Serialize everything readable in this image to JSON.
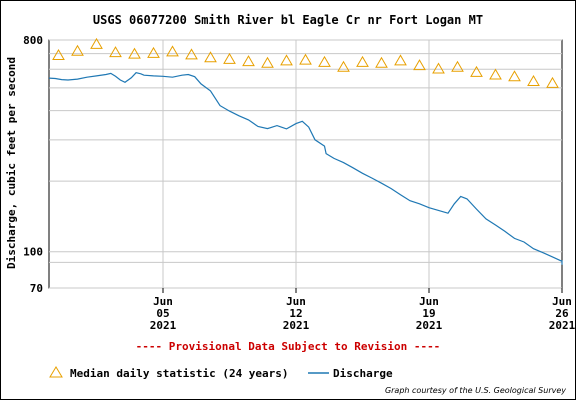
{
  "chart_data": {
    "type": "line",
    "title": "USGS 06077200 Smith River bl Eagle Cr nr Fort Logan MT",
    "ylabel": "Discharge, cubic feet per second",
    "y_scale": "log",
    "ylim": [
      70,
      800
    ],
    "y_ticks": [
      {
        "value": 800,
        "label": "800"
      },
      {
        "value": 100,
        "label": "100"
      },
      {
        "value": 70,
        "label": "70"
      }
    ],
    "y_minor_grid": [
      90,
      200,
      300,
      400,
      500,
      600,
      700
    ],
    "xlim": [
      "2021-05-30",
      "2021-06-26"
    ],
    "x_ticks": [
      {
        "date": "2021-06-05",
        "line1": "Jun",
        "line2": "05",
        "line3": "2021"
      },
      {
        "date": "2021-06-12",
        "line1": "Jun",
        "line2": "12",
        "line3": "2021"
      },
      {
        "date": "2021-06-19",
        "line1": "Jun",
        "line2": "19",
        "line3": "2021"
      },
      {
        "date": "2021-06-26",
        "line1": "Jun",
        "line2": "26",
        "line3": "2021"
      }
    ],
    "grid": true,
    "legend_position": "bottom",
    "colors": {
      "median": "#e8a000",
      "discharge": "#1f78b4",
      "provisional": "#cc0000"
    },
    "series": [
      {
        "name": "Median daily statistic (24 years)",
        "style": "triangle-markers",
        "x": [
          "2021-05-30",
          "2021-05-31",
          "2021-06-01",
          "2021-06-02",
          "2021-06-03",
          "2021-06-04",
          "2021-06-05",
          "2021-06-06",
          "2021-06-07",
          "2021-06-08",
          "2021-06-09",
          "2021-06-10",
          "2021-06-11",
          "2021-06-12",
          "2021-06-13",
          "2021-06-14",
          "2021-06-15",
          "2021-06-16",
          "2021-06-17",
          "2021-06-18",
          "2021-06-19",
          "2021-06-20",
          "2021-06-21",
          "2021-06-22",
          "2021-06-23",
          "2021-06-24",
          "2021-06-25"
        ],
        "values": [
          690,
          720,
          770,
          710,
          700,
          705,
          715,
          695,
          675,
          665,
          650,
          640,
          655,
          660,
          645,
          615,
          645,
          640,
          655,
          625,
          605,
          615,
          585,
          570,
          560,
          535,
          525
        ]
      },
      {
        "name": "Discharge",
        "style": "line",
        "x": [
          "2021-05-30",
          "2021-05-31",
          "2021-06-01",
          "2021-06-02",
          "2021-06-03",
          "2021-06-04",
          "2021-06-05",
          "2021-06-06",
          "2021-06-07",
          "2021-06-08",
          "2021-06-09",
          "2021-06-10",
          "2021-06-11",
          "2021-06-12",
          "2021-06-13",
          "2021-06-14",
          "2021-06-15",
          "2021-06-16",
          "2021-06-17",
          "2021-06-18",
          "2021-06-19",
          "2021-06-20",
          "2021-06-21",
          "2021-06-22",
          "2021-06-23",
          "2021-06-24",
          "2021-06-25",
          "2021-06-26"
        ],
        "values": [
          550,
          540,
          555,
          570,
          525,
          570,
          560,
          565,
          470,
          400,
          370,
          340,
          355,
          345,
          270,
          245,
          225,
          205,
          185,
          165,
          155,
          145,
          150,
          135,
          122,
          110,
          99,
          91
        ],
        "fine": [
          [
            "2021-05-30T00:00",
            550
          ],
          [
            "2021-05-30T08:00",
            548
          ],
          [
            "2021-05-30T16:00",
            542
          ],
          [
            "2021-05-31T00:00",
            540
          ],
          [
            "2021-05-31T12:00",
            545
          ],
          [
            "2021-06-01T00:00",
            555
          ],
          [
            "2021-06-01T12:00",
            562
          ],
          [
            "2021-06-02T00:00",
            570
          ],
          [
            "2021-06-02T06:00",
            576
          ],
          [
            "2021-06-02T12:00",
            560
          ],
          [
            "2021-06-02T18:00",
            540
          ],
          [
            "2021-06-03T00:00",
            528
          ],
          [
            "2021-06-03T08:00",
            552
          ],
          [
            "2021-06-03T14:00",
            580
          ],
          [
            "2021-06-03T20:00",
            574
          ],
          [
            "2021-06-04T00:00",
            566
          ],
          [
            "2021-06-04T12:00",
            562
          ],
          [
            "2021-06-05T00:00",
            560
          ],
          [
            "2021-06-05T12:00",
            555
          ],
          [
            "2021-06-06T00:00",
            566
          ],
          [
            "2021-06-06T08:00",
            570
          ],
          [
            "2021-06-06T16:00",
            558
          ],
          [
            "2021-06-07T00:00",
            520
          ],
          [
            "2021-06-07T12:00",
            485
          ],
          [
            "2021-06-08T00:00",
            420
          ],
          [
            "2021-06-08T12:00",
            398
          ],
          [
            "2021-06-09T00:00",
            380
          ],
          [
            "2021-06-09T12:00",
            365
          ],
          [
            "2021-06-10T00:00",
            342
          ],
          [
            "2021-06-10T12:00",
            335
          ],
          [
            "2021-06-11T00:00",
            345
          ],
          [
            "2021-06-11T12:00",
            334
          ],
          [
            "2021-06-12T00:00",
            352
          ],
          [
            "2021-06-12T08:00",
            360
          ],
          [
            "2021-06-12T16:00",
            340
          ],
          [
            "2021-06-13T00:00",
            300
          ],
          [
            "2021-06-13T12:00",
            282
          ],
          [
            "2021-06-13T14:00",
            262
          ],
          [
            "2021-06-14T00:00",
            250
          ],
          [
            "2021-06-14T12:00",
            240
          ],
          [
            "2021-06-15T00:00",
            228
          ],
          [
            "2021-06-15T12:00",
            216
          ],
          [
            "2021-06-16T00:00",
            206
          ],
          [
            "2021-06-16T12:00",
            196
          ],
          [
            "2021-06-17T00:00",
            186
          ],
          [
            "2021-06-17T12:00",
            175
          ],
          [
            "2021-06-18T00:00",
            165
          ],
          [
            "2021-06-18T12:00",
            160
          ],
          [
            "2021-06-19T00:00",
            154
          ],
          [
            "2021-06-19T12:00",
            150
          ],
          [
            "2021-06-20T00:00",
            146
          ],
          [
            "2021-06-20T08:00",
            160
          ],
          [
            "2021-06-20T16:00",
            172
          ],
          [
            "2021-06-21T00:00",
            168
          ],
          [
            "2021-06-21T12:00",
            152
          ],
          [
            "2021-06-22T00:00",
            138
          ],
          [
            "2021-06-22T12:00",
            130
          ],
          [
            "2021-06-23T00:00",
            122
          ],
          [
            "2021-06-23T12:00",
            114
          ],
          [
            "2021-06-24T00:00",
            110
          ],
          [
            "2021-06-24T12:00",
            103
          ],
          [
            "2021-06-25T00:00",
            99
          ],
          [
            "2021-06-25T12:00",
            95
          ],
          [
            "2021-06-26T00:00",
            91
          ],
          [
            "2021-06-26T06:00",
            92
          ],
          [
            "2021-06-26T12:00",
            88
          ]
        ]
      }
    ]
  },
  "provisional_notice": "---- Provisional Data Subject to Revision ----",
  "credit": "Graph courtesy of the U.S. Geological Survey"
}
